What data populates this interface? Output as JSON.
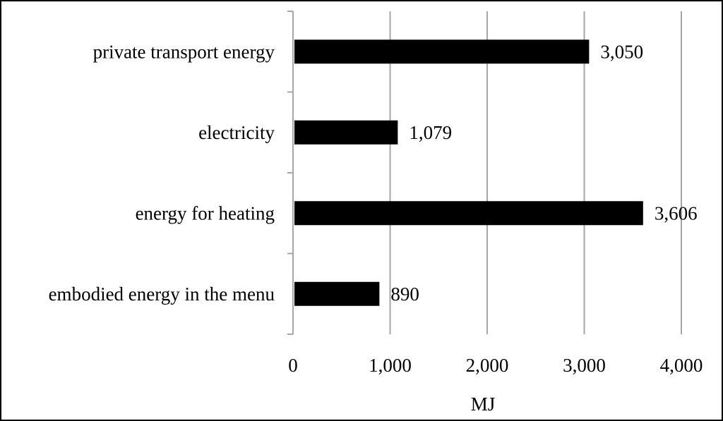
{
  "chart_data": {
    "type": "bar",
    "orientation": "horizontal",
    "categories": [
      "private transport energy",
      "electricity",
      "energy for heating",
      "embodied energy in the menu"
    ],
    "values": [
      3050,
      1079,
      3606,
      890
    ],
    "value_labels": [
      "3,050",
      "1,079",
      "3,606",
      "890"
    ],
    "xlabel": "MJ",
    "ylabel": "",
    "title": "",
    "xlim": [
      0,
      4000
    ],
    "xticks": [
      0,
      1000,
      2000,
      3000,
      4000
    ],
    "xtick_labels": [
      "0",
      "1,000",
      "2,000",
      "3,000",
      "4,000"
    ],
    "grid": "vertical",
    "legend": "none",
    "bar_color": "#000000",
    "grid_color": "#a6a6a6"
  }
}
